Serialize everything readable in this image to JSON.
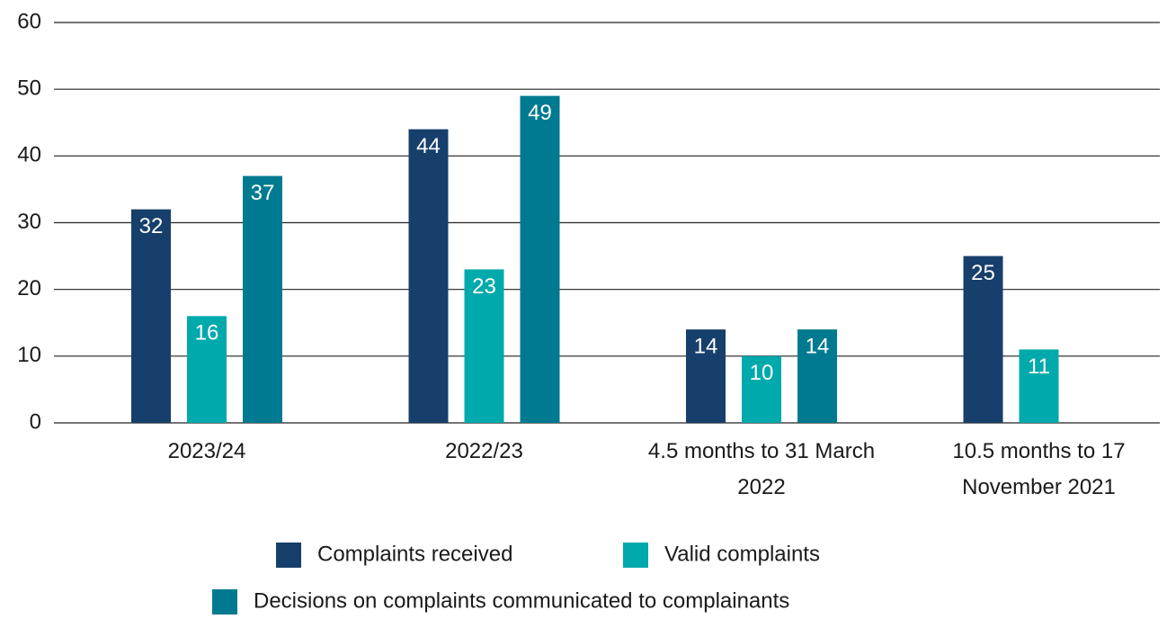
{
  "chart_data": {
    "type": "bar",
    "categories": [
      "2023/24",
      "2022/23",
      "4.5 months to 31 March 2022",
      "10.5 months to 17 November 2021"
    ],
    "series": [
      {
        "name": "Complaints received",
        "color": "#173f6b",
        "values": [
          32,
          44,
          14,
          25
        ]
      },
      {
        "name": "Valid complaints",
        "color": "#00a9ac",
        "values": [
          16,
          23,
          10,
          11
        ]
      },
      {
        "name": "Decisions on complaints communicated to complainants",
        "color": "#007a91",
        "values": [
          37,
          49,
          14,
          null
        ]
      }
    ],
    "ylim": [
      0,
      60
    ],
    "yticks": [
      0,
      10,
      20,
      30,
      40,
      50,
      60
    ],
    "grid": true,
    "legend": "bottom"
  }
}
